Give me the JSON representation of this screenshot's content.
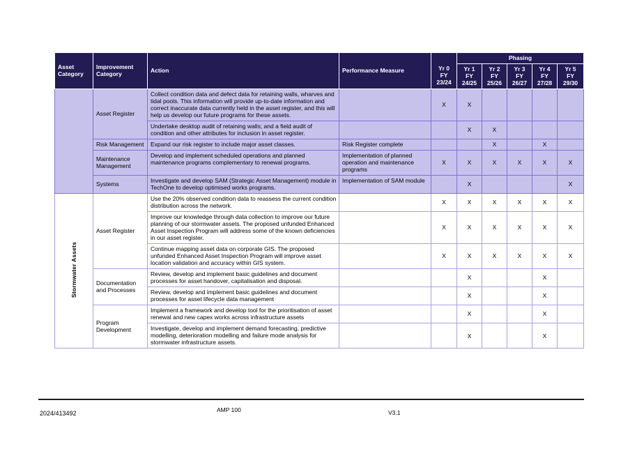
{
  "colors": {
    "header_bg": "#221B54",
    "header_text": "#FFFFFF",
    "purple_row_bg": "#C7C2EB",
    "purple_border": "#7F72D4",
    "white_row_border": "#A9A0E8",
    "body_text": "#000000"
  },
  "table": {
    "columns": {
      "asset_category": "Asset Category",
      "improvement_category": "Improvement Category",
      "action": "Action",
      "performance_measure": "Performance Measure"
    },
    "phasing_label": "Phasing",
    "year_columns": [
      "Yr 0\nFY\n23/24",
      "Yr 1\nFY\n24/25",
      "Yr 2\nFY\n25/26",
      "Yr 3\nFY\n26/27",
      "Yr 4\nFY\n27/28",
      "Yr 5\nFY\n29/30"
    ],
    "mark_glyph": "X",
    "sections": [
      {
        "asset_category": "",
        "theme": "purple",
        "groups": [
          {
            "improvement_category": "Asset Register",
            "rows": [
              {
                "action": "Collect condition data and defect data for retaining walls, wharves and tidal pools. This information will provide up-to-date information and correct inaccurate data currently held in the asset register, and this will help us develop our future programs for these assets.",
                "performance_measure": "",
                "phasing": [
                  "X",
                  "X",
                  "",
                  "",
                  "",
                  ""
                ]
              },
              {
                "action": "Undertake desktop audit of retaining walls; and a field audit of condition and other attributes for inclusion in asset register.",
                "performance_measure": "",
                "phasing": [
                  "",
                  "X",
                  "X",
                  "",
                  "",
                  ""
                ]
              }
            ]
          },
          {
            "improvement_category": "Risk Management",
            "rows": [
              {
                "action": "Expand our risk register to include major asset classes.",
                "performance_measure": "Risk Register complete",
                "phasing": [
                  "",
                  "",
                  "X",
                  "",
                  "X",
                  ""
                ]
              }
            ]
          },
          {
            "improvement_category": "Maintenance Management",
            "rows": [
              {
                "action": "Develop and implement scheduled operations and planned maintenance programs complementary to renewal programs.",
                "performance_measure": "Implementation of planned operation and maintenance programs",
                "phasing": [
                  "X",
                  "X",
                  "X",
                  "X",
                  "X",
                  "X"
                ]
              }
            ]
          },
          {
            "improvement_category": "Systems",
            "rows": [
              {
                "action": "Investigate and develop SAM (Strategic Asset Management) module in TechOne to develop optimised works programs.",
                "performance_measure": "Implementation of SAM module",
                "phasing": [
                  "",
                  "X",
                  "",
                  "",
                  "",
                  "X"
                ]
              }
            ]
          }
        ]
      },
      {
        "asset_category": "Stormwater Assets",
        "theme": "white",
        "groups": [
          {
            "improvement_category": "Asset Register",
            "rows": [
              {
                "action": "Use the 20% observed condition data to reassess the current condition distribution across the network.",
                "performance_measure": "",
                "phasing": [
                  "X",
                  "X",
                  "X",
                  "X",
                  "X",
                  "X"
                ]
              },
              {
                "action": "Improve our knowledge through data collection to improve our future planning of our stormwater assets. The proposed unfunded Enhanced Asset Inspection Program will address some of the known deficiencies in our asset register.",
                "performance_measure": "",
                "phasing": [
                  "X",
                  "X",
                  "X",
                  "X",
                  "X",
                  "X"
                ]
              },
              {
                "action": "Continue mapping asset data on corporate GIS. The proposed unfunded Enhanced Asset Inspection Program will improve asset location validation and accuracy within GIS system.",
                "performance_measure": "",
                "phasing": [
                  "X",
                  "X",
                  "X",
                  "X",
                  "X",
                  "X"
                ]
              }
            ]
          },
          {
            "improvement_category": "Documentation and Processes",
            "rows": [
              {
                "action": "Review, develop and implement basic guidelines and document processes for asset handover, capitalisation and disposal.",
                "performance_measure": "",
                "phasing": [
                  "",
                  "X",
                  "",
                  "",
                  "X",
                  ""
                ]
              },
              {
                "action": "Review, develop and implement basic guidelines and document processes for asset lifecycle data management",
                "performance_measure": "",
                "phasing": [
                  "",
                  "X",
                  "",
                  "",
                  "X",
                  ""
                ]
              }
            ]
          },
          {
            "improvement_category": "Program Development",
            "rows": [
              {
                "action": "Implement a framework and develop tool for the prioritisation of asset renewal and new capex works across infrastructure assets",
                "performance_measure": "",
                "phasing": [
                  "",
                  "X",
                  "",
                  "",
                  "X",
                  ""
                ]
              },
              {
                "action": "Investigate, develop and implement demand forecasting, predictive modelling, deterioration modelling and failure mode analysis for stormwater infrastructure assets.",
                "performance_measure": "",
                "phasing": [
                  "",
                  "X",
                  "",
                  "",
                  "X",
                  ""
                ]
              }
            ]
          }
        ]
      }
    ]
  },
  "footer": {
    "left": "2024/413492",
    "center": "AMP 100",
    "right": "V3.1"
  }
}
